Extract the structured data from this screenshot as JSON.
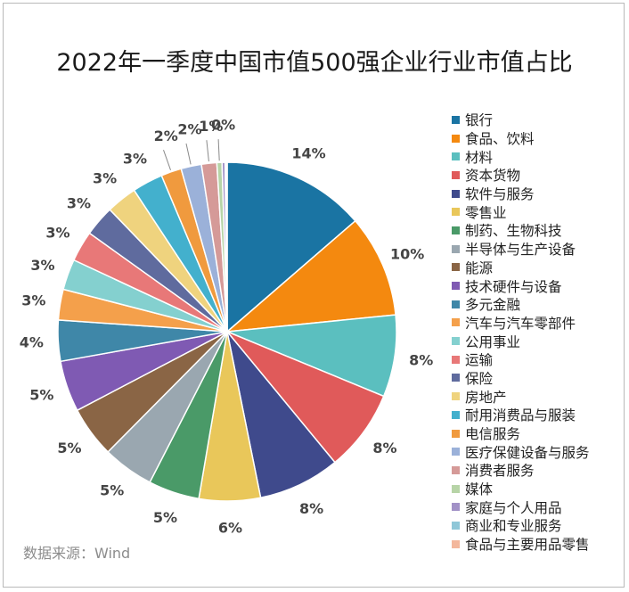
{
  "title": "2022年一季度中国市值500强企业行业市值占比",
  "source": "数据来源：Wind",
  "chart_data": {
    "type": "pie",
    "title": "2022年一季度中国市值500强企业行业市值占比",
    "legend_position": "right",
    "labels": [
      "银行",
      "食品、饮料",
      "材料",
      "资本货物",
      "软件与服务",
      "零售业",
      "制药、生物科技",
      "半导体与生产设备",
      "能源",
      "技术硬件与设备",
      "多元金融",
      "汽车与汽车零部件",
      "公用事业",
      "运输",
      "保险",
      "房地产",
      "耐用消费品与服装",
      "电信服务",
      "医疗保健设备与服务",
      "消费者服务",
      "媒体",
      "家庭与个人用品",
      "商业和专业服务",
      "食品与主要用品零售"
    ],
    "values": [
      14,
      10,
      8,
      8,
      8,
      6,
      5,
      5,
      5,
      5,
      4,
      3,
      3,
      3,
      3,
      3,
      3,
      2,
      2,
      1.5,
      0.5,
      0.3,
      0.15,
      0.05
    ],
    "value_labels": [
      "14%",
      "10%",
      "8%",
      "8%",
      "8%",
      "6%",
      "5%",
      "5%",
      "5%",
      "5%",
      "4%",
      "3%",
      "3%",
      "3%",
      "3%",
      "3%",
      "3%",
      "2%",
      "2%",
      "1%",
      "0%",
      "",
      "",
      ""
    ],
    "colors": [
      "#1a74a3",
      "#f4890f",
      "#5bbfbf",
      "#e05a5a",
      "#3f4a8c",
      "#e9c75a",
      "#4a9a68",
      "#9aa7b0",
      "#8a6545",
      "#7f5ab3",
      "#3f87a8",
      "#f4a04b",
      "#84d0cf",
      "#e87878",
      "#5f6b9e",
      "#efd37e",
      "#43b0cd",
      "#f09a3e",
      "#9bb1d9",
      "#d59a98",
      "#b7d4a7",
      "#a292c7",
      "#8fc7d8",
      "#f3b79c"
    ]
  }
}
